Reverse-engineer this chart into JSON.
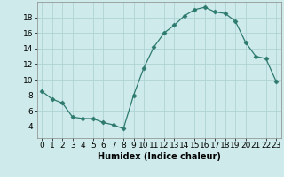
{
  "x": [
    0,
    1,
    2,
    3,
    4,
    5,
    6,
    7,
    8,
    9,
    10,
    11,
    12,
    13,
    14,
    15,
    16,
    17,
    18,
    19,
    20,
    21,
    22,
    23
  ],
  "y": [
    8.5,
    7.5,
    7.0,
    5.2,
    5.0,
    5.0,
    4.5,
    4.2,
    3.7,
    8.0,
    11.5,
    14.2,
    16.0,
    17.0,
    18.2,
    19.0,
    19.3,
    18.7,
    18.5,
    17.5,
    14.8,
    13.0,
    12.7,
    9.8
  ],
  "line_color": "#2d7a6e",
  "marker": "D",
  "marker_size": 2.5,
  "bg_color": "#ceeaea",
  "grid_color": "#aed4d4",
  "xlabel": "Humidex (Indice chaleur)",
  "xlim": [
    -0.5,
    23.5
  ],
  "ylim": [
    2.5,
    20.0
  ],
  "yticks": [
    4,
    6,
    8,
    10,
    12,
    14,
    16,
    18
  ],
  "xticks": [
    0,
    1,
    2,
    3,
    4,
    5,
    6,
    7,
    8,
    9,
    10,
    11,
    12,
    13,
    14,
    15,
    16,
    17,
    18,
    19,
    20,
    21,
    22,
    23
  ],
  "xlabel_fontsize": 7,
  "tick_fontsize": 6.5
}
